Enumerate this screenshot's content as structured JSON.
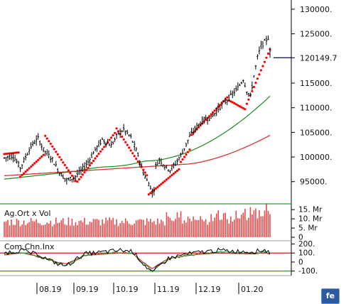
{
  "chart_data": {
    "main": {
      "type": "line",
      "y_ticks": [
        "130000.",
        "125000.",
        "120149.7",
        "115000.",
        "110000.",
        "105000.",
        "100000.",
        "95000."
      ],
      "last_price_label": "120149.7",
      "ylim": [
        91500,
        131000
      ],
      "grid": false,
      "ohlc": [],
      "series": []
    },
    "volume": {
      "type": "bar",
      "label": "Ag.Ort x Vol",
      "y_ticks": [
        "15. Mr",
        "10. Mr",
        "5. Mr",
        "0"
      ],
      "values": []
    },
    "cci": {
      "type": "line",
      "label": "Com.Chn.Inx",
      "y_ticks": [
        "200.",
        "100.",
        "0",
        "-100."
      ],
      "reference_lines": [
        100,
        -100
      ],
      "series": []
    },
    "x_ticks": [
      "08.19",
      "09.19",
      "10.19",
      "11.19",
      "12.19",
      "01.20"
    ]
  },
  "colors": {
    "candle": "#000000",
    "sar": "#ff0000",
    "ma_short": "#1a8a1a",
    "ma_long": "#e03030",
    "volume_bar": "#e84a4a",
    "cci_black": "#000000",
    "cci_green": "#2a9a2a",
    "cci_red": "#cc2222",
    "band_line": "#22aa22",
    "last_price_line": "#000080"
  },
  "logo": {
    "icon": "brand-logo-icon",
    "text": "fe"
  }
}
